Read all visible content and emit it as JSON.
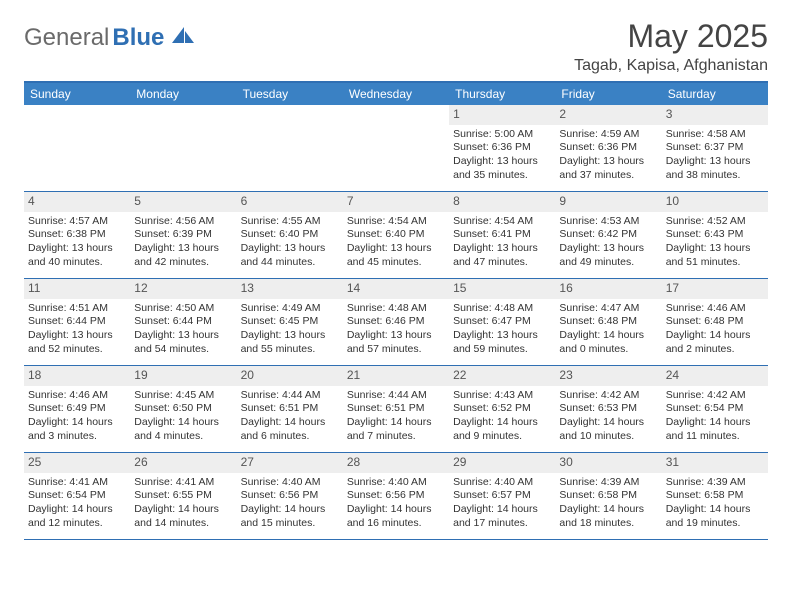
{
  "logo": {
    "general": "General",
    "blue": "Blue"
  },
  "title": "May 2025",
  "location": "Tagab, Kapisa, Afghanistan",
  "header_bg": "#3a81c4",
  "border_color": "#2f6fb3",
  "daynum_bg": "#eeeeee",
  "weekdays": [
    "Sunday",
    "Monday",
    "Tuesday",
    "Wednesday",
    "Thursday",
    "Friday",
    "Saturday"
  ],
  "weeks": [
    [
      null,
      null,
      null,
      null,
      {
        "n": "1",
        "sr": "5:00 AM",
        "ss": "6:36 PM",
        "dl": "13 hours and 35 minutes."
      },
      {
        "n": "2",
        "sr": "4:59 AM",
        "ss": "6:36 PM",
        "dl": "13 hours and 37 minutes."
      },
      {
        "n": "3",
        "sr": "4:58 AM",
        "ss": "6:37 PM",
        "dl": "13 hours and 38 minutes."
      }
    ],
    [
      {
        "n": "4",
        "sr": "4:57 AM",
        "ss": "6:38 PM",
        "dl": "13 hours and 40 minutes."
      },
      {
        "n": "5",
        "sr": "4:56 AM",
        "ss": "6:39 PM",
        "dl": "13 hours and 42 minutes."
      },
      {
        "n": "6",
        "sr": "4:55 AM",
        "ss": "6:40 PM",
        "dl": "13 hours and 44 minutes."
      },
      {
        "n": "7",
        "sr": "4:54 AM",
        "ss": "6:40 PM",
        "dl": "13 hours and 45 minutes."
      },
      {
        "n": "8",
        "sr": "4:54 AM",
        "ss": "6:41 PM",
        "dl": "13 hours and 47 minutes."
      },
      {
        "n": "9",
        "sr": "4:53 AM",
        "ss": "6:42 PM",
        "dl": "13 hours and 49 minutes."
      },
      {
        "n": "10",
        "sr": "4:52 AM",
        "ss": "6:43 PM",
        "dl": "13 hours and 51 minutes."
      }
    ],
    [
      {
        "n": "11",
        "sr": "4:51 AM",
        "ss": "6:44 PM",
        "dl": "13 hours and 52 minutes."
      },
      {
        "n": "12",
        "sr": "4:50 AM",
        "ss": "6:44 PM",
        "dl": "13 hours and 54 minutes."
      },
      {
        "n": "13",
        "sr": "4:49 AM",
        "ss": "6:45 PM",
        "dl": "13 hours and 55 minutes."
      },
      {
        "n": "14",
        "sr": "4:48 AM",
        "ss": "6:46 PM",
        "dl": "13 hours and 57 minutes."
      },
      {
        "n": "15",
        "sr": "4:48 AM",
        "ss": "6:47 PM",
        "dl": "13 hours and 59 minutes."
      },
      {
        "n": "16",
        "sr": "4:47 AM",
        "ss": "6:48 PM",
        "dl": "14 hours and 0 minutes."
      },
      {
        "n": "17",
        "sr": "4:46 AM",
        "ss": "6:48 PM",
        "dl": "14 hours and 2 minutes."
      }
    ],
    [
      {
        "n": "18",
        "sr": "4:46 AM",
        "ss": "6:49 PM",
        "dl": "14 hours and 3 minutes."
      },
      {
        "n": "19",
        "sr": "4:45 AM",
        "ss": "6:50 PM",
        "dl": "14 hours and 4 minutes."
      },
      {
        "n": "20",
        "sr": "4:44 AM",
        "ss": "6:51 PM",
        "dl": "14 hours and 6 minutes."
      },
      {
        "n": "21",
        "sr": "4:44 AM",
        "ss": "6:51 PM",
        "dl": "14 hours and 7 minutes."
      },
      {
        "n": "22",
        "sr": "4:43 AM",
        "ss": "6:52 PM",
        "dl": "14 hours and 9 minutes."
      },
      {
        "n": "23",
        "sr": "4:42 AM",
        "ss": "6:53 PM",
        "dl": "14 hours and 10 minutes."
      },
      {
        "n": "24",
        "sr": "4:42 AM",
        "ss": "6:54 PM",
        "dl": "14 hours and 11 minutes."
      }
    ],
    [
      {
        "n": "25",
        "sr": "4:41 AM",
        "ss": "6:54 PM",
        "dl": "14 hours and 12 minutes."
      },
      {
        "n": "26",
        "sr": "4:41 AM",
        "ss": "6:55 PM",
        "dl": "14 hours and 14 minutes."
      },
      {
        "n": "27",
        "sr": "4:40 AM",
        "ss": "6:56 PM",
        "dl": "14 hours and 15 minutes."
      },
      {
        "n": "28",
        "sr": "4:40 AM",
        "ss": "6:56 PM",
        "dl": "14 hours and 16 minutes."
      },
      {
        "n": "29",
        "sr": "4:40 AM",
        "ss": "6:57 PM",
        "dl": "14 hours and 17 minutes."
      },
      {
        "n": "30",
        "sr": "4:39 AM",
        "ss": "6:58 PM",
        "dl": "14 hours and 18 minutes."
      },
      {
        "n": "31",
        "sr": "4:39 AM",
        "ss": "6:58 PM",
        "dl": "14 hours and 19 minutes."
      }
    ]
  ],
  "labels": {
    "sunrise": "Sunrise:",
    "sunset": "Sunset:",
    "daylight": "Daylight:"
  }
}
